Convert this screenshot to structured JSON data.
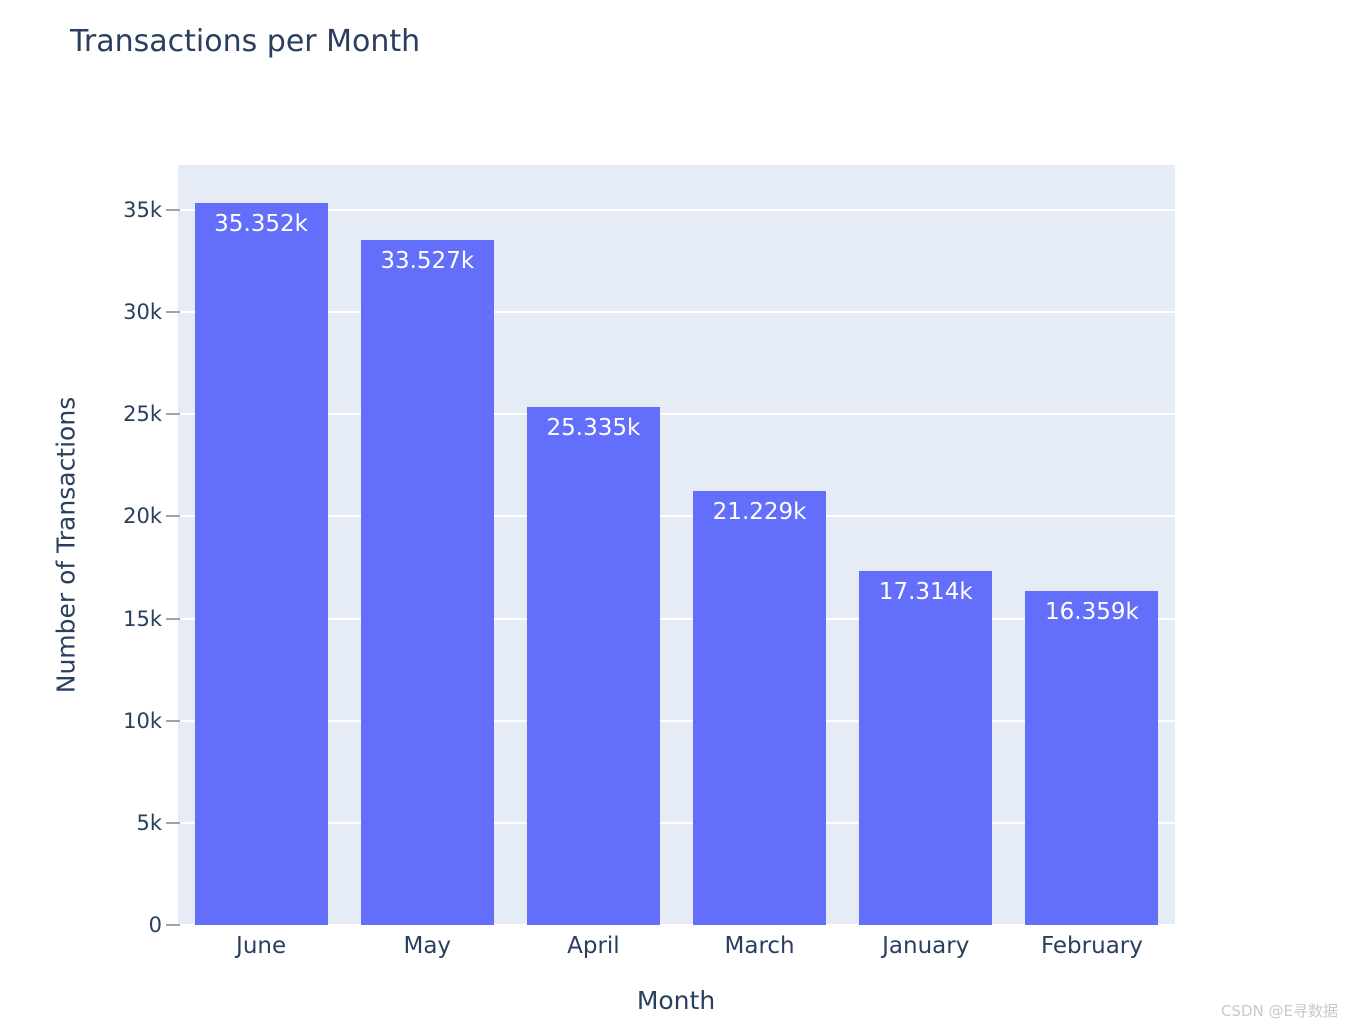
{
  "chart_data": {
    "type": "bar",
    "title": "Transactions per Month",
    "xlabel": "Month",
    "ylabel": "Number of Transactions",
    "categories": [
      "June",
      "May",
      "April",
      "March",
      "January",
      "February"
    ],
    "values": [
      35352,
      33527,
      25335,
      21229,
      17314,
      16359
    ],
    "bar_labels": [
      "35.352k",
      "33.527k",
      "25.335k",
      "21.229k",
      "17.314k",
      "16.359k"
    ],
    "bar_label_position": "inside-top",
    "ylim": [
      0,
      37200
    ],
    "yticks": [
      0,
      5000,
      10000,
      15000,
      20000,
      25000,
      30000,
      35000
    ],
    "ytick_labels": [
      "0",
      "5k",
      "10k",
      "15k",
      "20k",
      "25k",
      "30k",
      "35k"
    ],
    "grid": true,
    "legend": "none",
    "colors": {
      "bar": "#636EFA",
      "plot_background": "#E5ECF6",
      "gridline": "#FFFFFF",
      "text": "#2A3F5F",
      "bar_label_text": "#FFFFFF",
      "tick_mark": "#9AA6B8"
    }
  },
  "watermark": {
    "text": "CSDN @E寻数据"
  }
}
